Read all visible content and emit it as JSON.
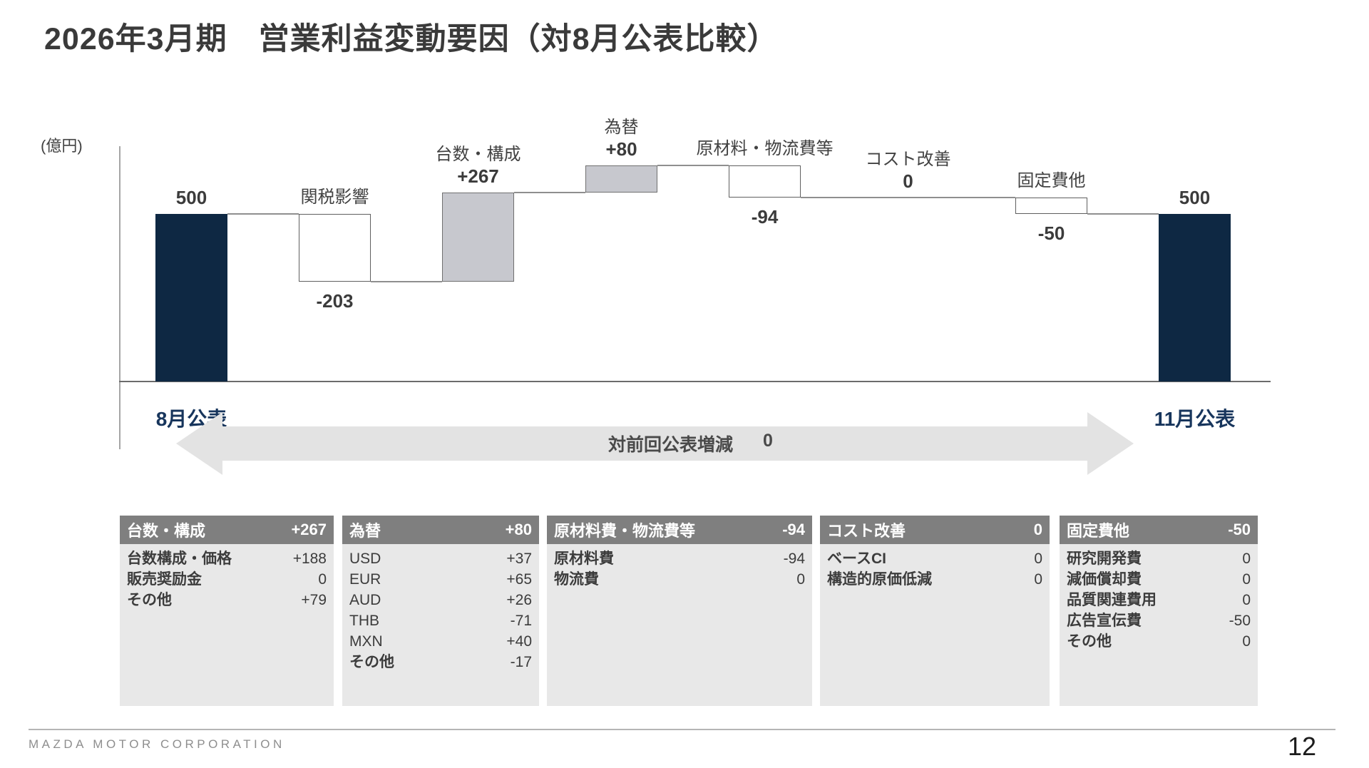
{
  "title": "2026年3月期　営業利益変動要因（対8月公表比較）",
  "unit_label": "(億円)",
  "chart_data": {
    "type": "waterfall",
    "title": "営業利益変動要因（対8月公表比較）",
    "unit": "億円",
    "ylim": [
      0,
      700
    ],
    "bars": [
      {
        "name": "8月公表",
        "value": 500,
        "label_value": "500",
        "kind": "total"
      },
      {
        "name": "関税影響",
        "value": -203,
        "label_value": "-203",
        "kind": "delta"
      },
      {
        "name": "台数・構成",
        "value": 267,
        "label_value": "+267",
        "kind": "delta"
      },
      {
        "name": "為替",
        "value": 80,
        "label_value": "+80",
        "kind": "delta"
      },
      {
        "name": "原材料・物流費等",
        "value": -94,
        "label_value": "-94",
        "kind": "delta"
      },
      {
        "name": "コスト改善",
        "value": 0,
        "label_value": "0",
        "kind": "delta"
      },
      {
        "name": "固定費他",
        "value": -50,
        "label_value": "-50",
        "kind": "delta"
      },
      {
        "name": "11月公表",
        "value": 500,
        "label_value": "500",
        "kind": "total"
      }
    ],
    "arrow": {
      "label": "対前回公表増減",
      "value": "0"
    }
  },
  "tables": [
    {
      "header": {
        "label": "台数・構成",
        "value": "+267"
      },
      "rows": [
        [
          "台数構成・価格",
          "+188"
        ],
        [
          "販売奨励金",
          "0"
        ],
        [
          "その他",
          "+79"
        ]
      ]
    },
    {
      "header": {
        "label": "為替",
        "value": "+80"
      },
      "rows": [
        [
          "USD",
          "+37"
        ],
        [
          "EUR",
          "+65"
        ],
        [
          "AUD",
          "+26"
        ],
        [
          "THB",
          "-71"
        ],
        [
          "MXN",
          "+40"
        ],
        [
          "その他",
          "-17"
        ]
      ]
    },
    {
      "header": {
        "label": "原材料費・物流費等",
        "value": "-94"
      },
      "rows": [
        [
          "原材料費",
          "-94"
        ],
        [
          "物流費",
          "0"
        ]
      ]
    },
    {
      "header": {
        "label": "コスト改善",
        "value": "0"
      },
      "rows": [
        [
          "ベースCI",
          "0"
        ],
        [
          "構造的原価低減",
          "0"
        ]
      ]
    },
    {
      "header": {
        "label": "固定費他",
        "value": "-50"
      },
      "rows": [
        [
          "研究開発費",
          "0"
        ],
        [
          "減価償却費",
          "0"
        ],
        [
          "品質関連費用",
          "0"
        ],
        [
          "広告宣伝費",
          "-50"
        ],
        [
          "その他",
          "0"
        ]
      ]
    }
  ],
  "footer": {
    "company": "MAZDA MOTOR CORPORATION",
    "page": "12"
  },
  "colors": {
    "navy_bar": "#0e2843",
    "gray_bar": "#c7c8ce",
    "white_bar": "#ffffff",
    "table_header_bg": "#7f7f7f",
    "table_body_bg": "#e8e8e8",
    "arrow_bg": "#e3e3e3",
    "axis_label_navy": "#17355c"
  }
}
